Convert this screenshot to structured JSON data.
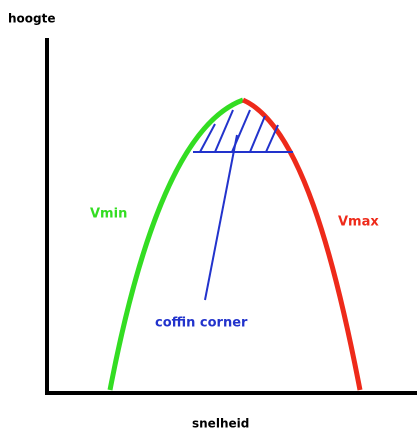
{
  "axes": {
    "y_label": "hoogte",
    "x_label": "snelheid"
  },
  "curves": {
    "left_label": "Vmin",
    "right_label": "Vmax"
  },
  "annotation": "coffin corner"
}
